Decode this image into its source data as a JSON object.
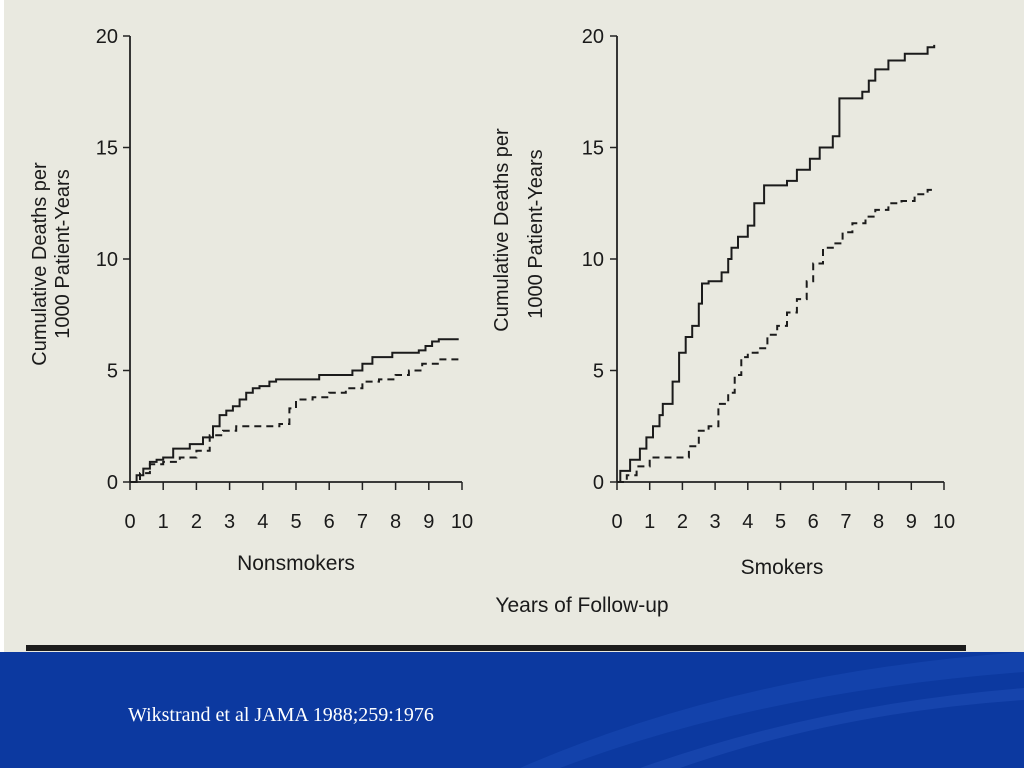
{
  "slide": {
    "citation": "Wikstrand et al JAMA 1988;259:1976",
    "band_color": "#0c39a0",
    "paper_color": "#e9e9e0"
  },
  "shared": {
    "ylabel_line1": "Cumulative Deaths per",
    "ylabel_line2": "1000 Patient-Years",
    "xlabel": "Years of Follow-up"
  },
  "chart_data": [
    {
      "type": "line",
      "title": "Nonsmokers",
      "xlabel": "Years of Follow-up",
      "ylabel": "Cumulative Deaths per 1000 Patient-Years",
      "xlim": [
        0,
        10
      ],
      "ylim": [
        0,
        20
      ],
      "xticks": [
        "0",
        "1",
        "2",
        "3",
        "4",
        "5",
        "6",
        "7",
        "8",
        "9",
        "10"
      ],
      "yticks": [
        "0",
        "5",
        "10",
        "15",
        "20"
      ],
      "series": [
        {
          "name": "solid",
          "style": "solid",
          "x": [
            0,
            0.2,
            0.4,
            0.6,
            0.8,
            1.0,
            1.3,
            1.8,
            2.2,
            2.5,
            2.7,
            2.9,
            3.1,
            3.3,
            3.5,
            3.7,
            3.9,
            4.2,
            4.4,
            5.0,
            5.7,
            6.7,
            7.0,
            7.3,
            7.9,
            8.7,
            8.9,
            9.1,
            9.3,
            9.9
          ],
          "y": [
            0,
            0.3,
            0.6,
            0.9,
            1.0,
            1.1,
            1.5,
            1.7,
            2.0,
            2.5,
            3.0,
            3.2,
            3.4,
            3.7,
            4.0,
            4.2,
            4.3,
            4.5,
            4.6,
            4.6,
            4.8,
            5.0,
            5.3,
            5.6,
            5.8,
            5.9,
            6.1,
            6.3,
            6.4,
            6.4
          ]
        },
        {
          "name": "dashed",
          "style": "dashed",
          "x": [
            0,
            0.3,
            0.6,
            1.0,
            1.5,
            2.0,
            2.4,
            2.8,
            3.2,
            4.0,
            4.5,
            4.8,
            5.0,
            5.5,
            6.0,
            6.5,
            7.0,
            7.5,
            8.0,
            8.4,
            8.8,
            9.3,
            9.9
          ],
          "y": [
            0,
            0.4,
            0.8,
            0.9,
            1.1,
            1.4,
            2.1,
            2.3,
            2.5,
            2.5,
            2.6,
            3.3,
            3.7,
            3.8,
            4.0,
            4.2,
            4.5,
            4.6,
            4.8,
            5.0,
            5.3,
            5.5,
            5.7
          ]
        }
      ]
    },
    {
      "type": "line",
      "title": "Smokers",
      "xlabel": "Years of Follow-up",
      "ylabel": "Cumulative Deaths per 1000 Patient-Years",
      "xlim": [
        0,
        10
      ],
      "ylim": [
        0,
        20
      ],
      "xticks": [
        "0",
        "1",
        "2",
        "3",
        "4",
        "5",
        "6",
        "7",
        "8",
        "9",
        "10"
      ],
      "yticks": [
        "0",
        "5",
        "10",
        "15",
        "20"
      ],
      "series": [
        {
          "name": "solid",
          "style": "solid",
          "x": [
            0,
            0.1,
            0.4,
            0.7,
            0.9,
            1.1,
            1.3,
            1.4,
            1.7,
            1.9,
            2.1,
            2.3,
            2.5,
            2.6,
            2.8,
            3.2,
            3.4,
            3.5,
            3.7,
            4.0,
            4.2,
            4.5,
            4.8,
            5.2,
            5.5,
            5.9,
            6.2,
            6.6,
            6.8,
            7.5,
            7.7,
            7.9,
            8.3,
            8.8,
            9.5,
            9.7
          ],
          "y": [
            0,
            0.5,
            1.0,
            1.5,
            2.0,
            2.5,
            3.0,
            3.5,
            4.5,
            5.8,
            6.5,
            7.0,
            8.0,
            8.9,
            9.0,
            9.4,
            10.0,
            10.5,
            11.0,
            11.5,
            12.5,
            13.3,
            13.3,
            13.5,
            14.0,
            14.5,
            15.0,
            15.5,
            17.2,
            17.5,
            18.0,
            18.5,
            18.9,
            19.2,
            19.5,
            19.6
          ]
        },
        {
          "name": "dashed",
          "style": "dashed",
          "x": [
            0,
            0.3,
            0.6,
            1.0,
            1.8,
            2.2,
            2.5,
            2.8,
            3.1,
            3.4,
            3.6,
            3.8,
            4.0,
            4.3,
            4.6,
            4.9,
            5.2,
            5.5,
            5.8,
            6.0,
            6.3,
            6.6,
            6.9,
            7.2,
            7.6,
            7.9,
            8.3,
            8.7,
            9.1,
            9.5,
            9.7
          ],
          "y": [
            0,
            0.3,
            0.7,
            1.1,
            1.1,
            1.6,
            2.3,
            2.5,
            3.5,
            4.0,
            4.8,
            5.6,
            5.8,
            6.0,
            6.6,
            7.0,
            7.6,
            8.2,
            9.0,
            9.8,
            10.5,
            10.7,
            11.2,
            11.6,
            11.9,
            12.2,
            12.5,
            12.6,
            12.9,
            13.1,
            13.1
          ]
        }
      ]
    }
  ]
}
